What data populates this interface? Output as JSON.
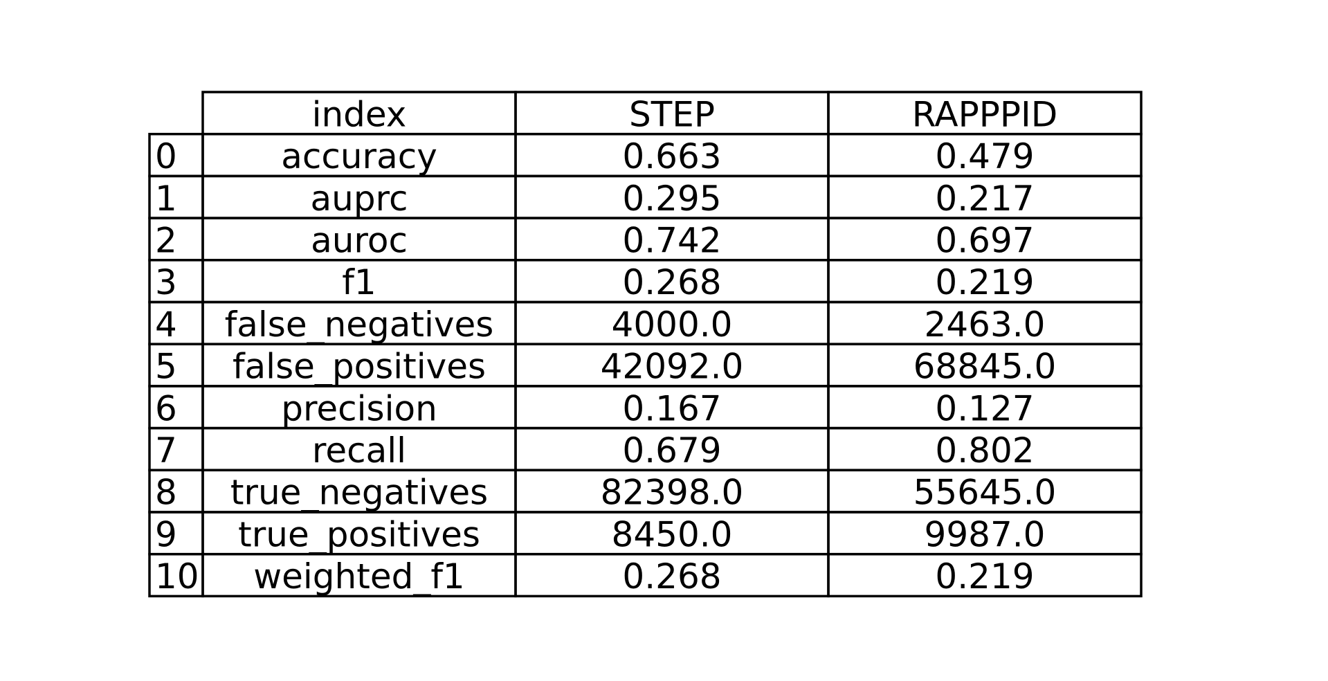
{
  "chart_data": {
    "type": "table",
    "columns": [
      "index",
      "STEP",
      "RAPPPID"
    ],
    "row_labels": [
      "0",
      "1",
      "2",
      "3",
      "4",
      "5",
      "6",
      "7",
      "8",
      "9",
      "10"
    ],
    "rows": [
      [
        "accuracy",
        "0.663",
        "0.479"
      ],
      [
        "auprc",
        "0.295",
        "0.217"
      ],
      [
        "auroc",
        "0.742",
        "0.697"
      ],
      [
        "f1",
        "0.268",
        "0.219"
      ],
      [
        "false_negatives",
        "4000.0",
        "2463.0"
      ],
      [
        "false_positives",
        "42092.0",
        "68845.0"
      ],
      [
        "precision",
        "0.167",
        "0.127"
      ],
      [
        "recall",
        "0.679",
        "0.802"
      ],
      [
        "true_negatives",
        "82398.0",
        "55645.0"
      ],
      [
        "true_positives",
        "8450.0",
        "9987.0"
      ],
      [
        "weighted_f1",
        "0.268",
        "0.219"
      ]
    ]
  }
}
